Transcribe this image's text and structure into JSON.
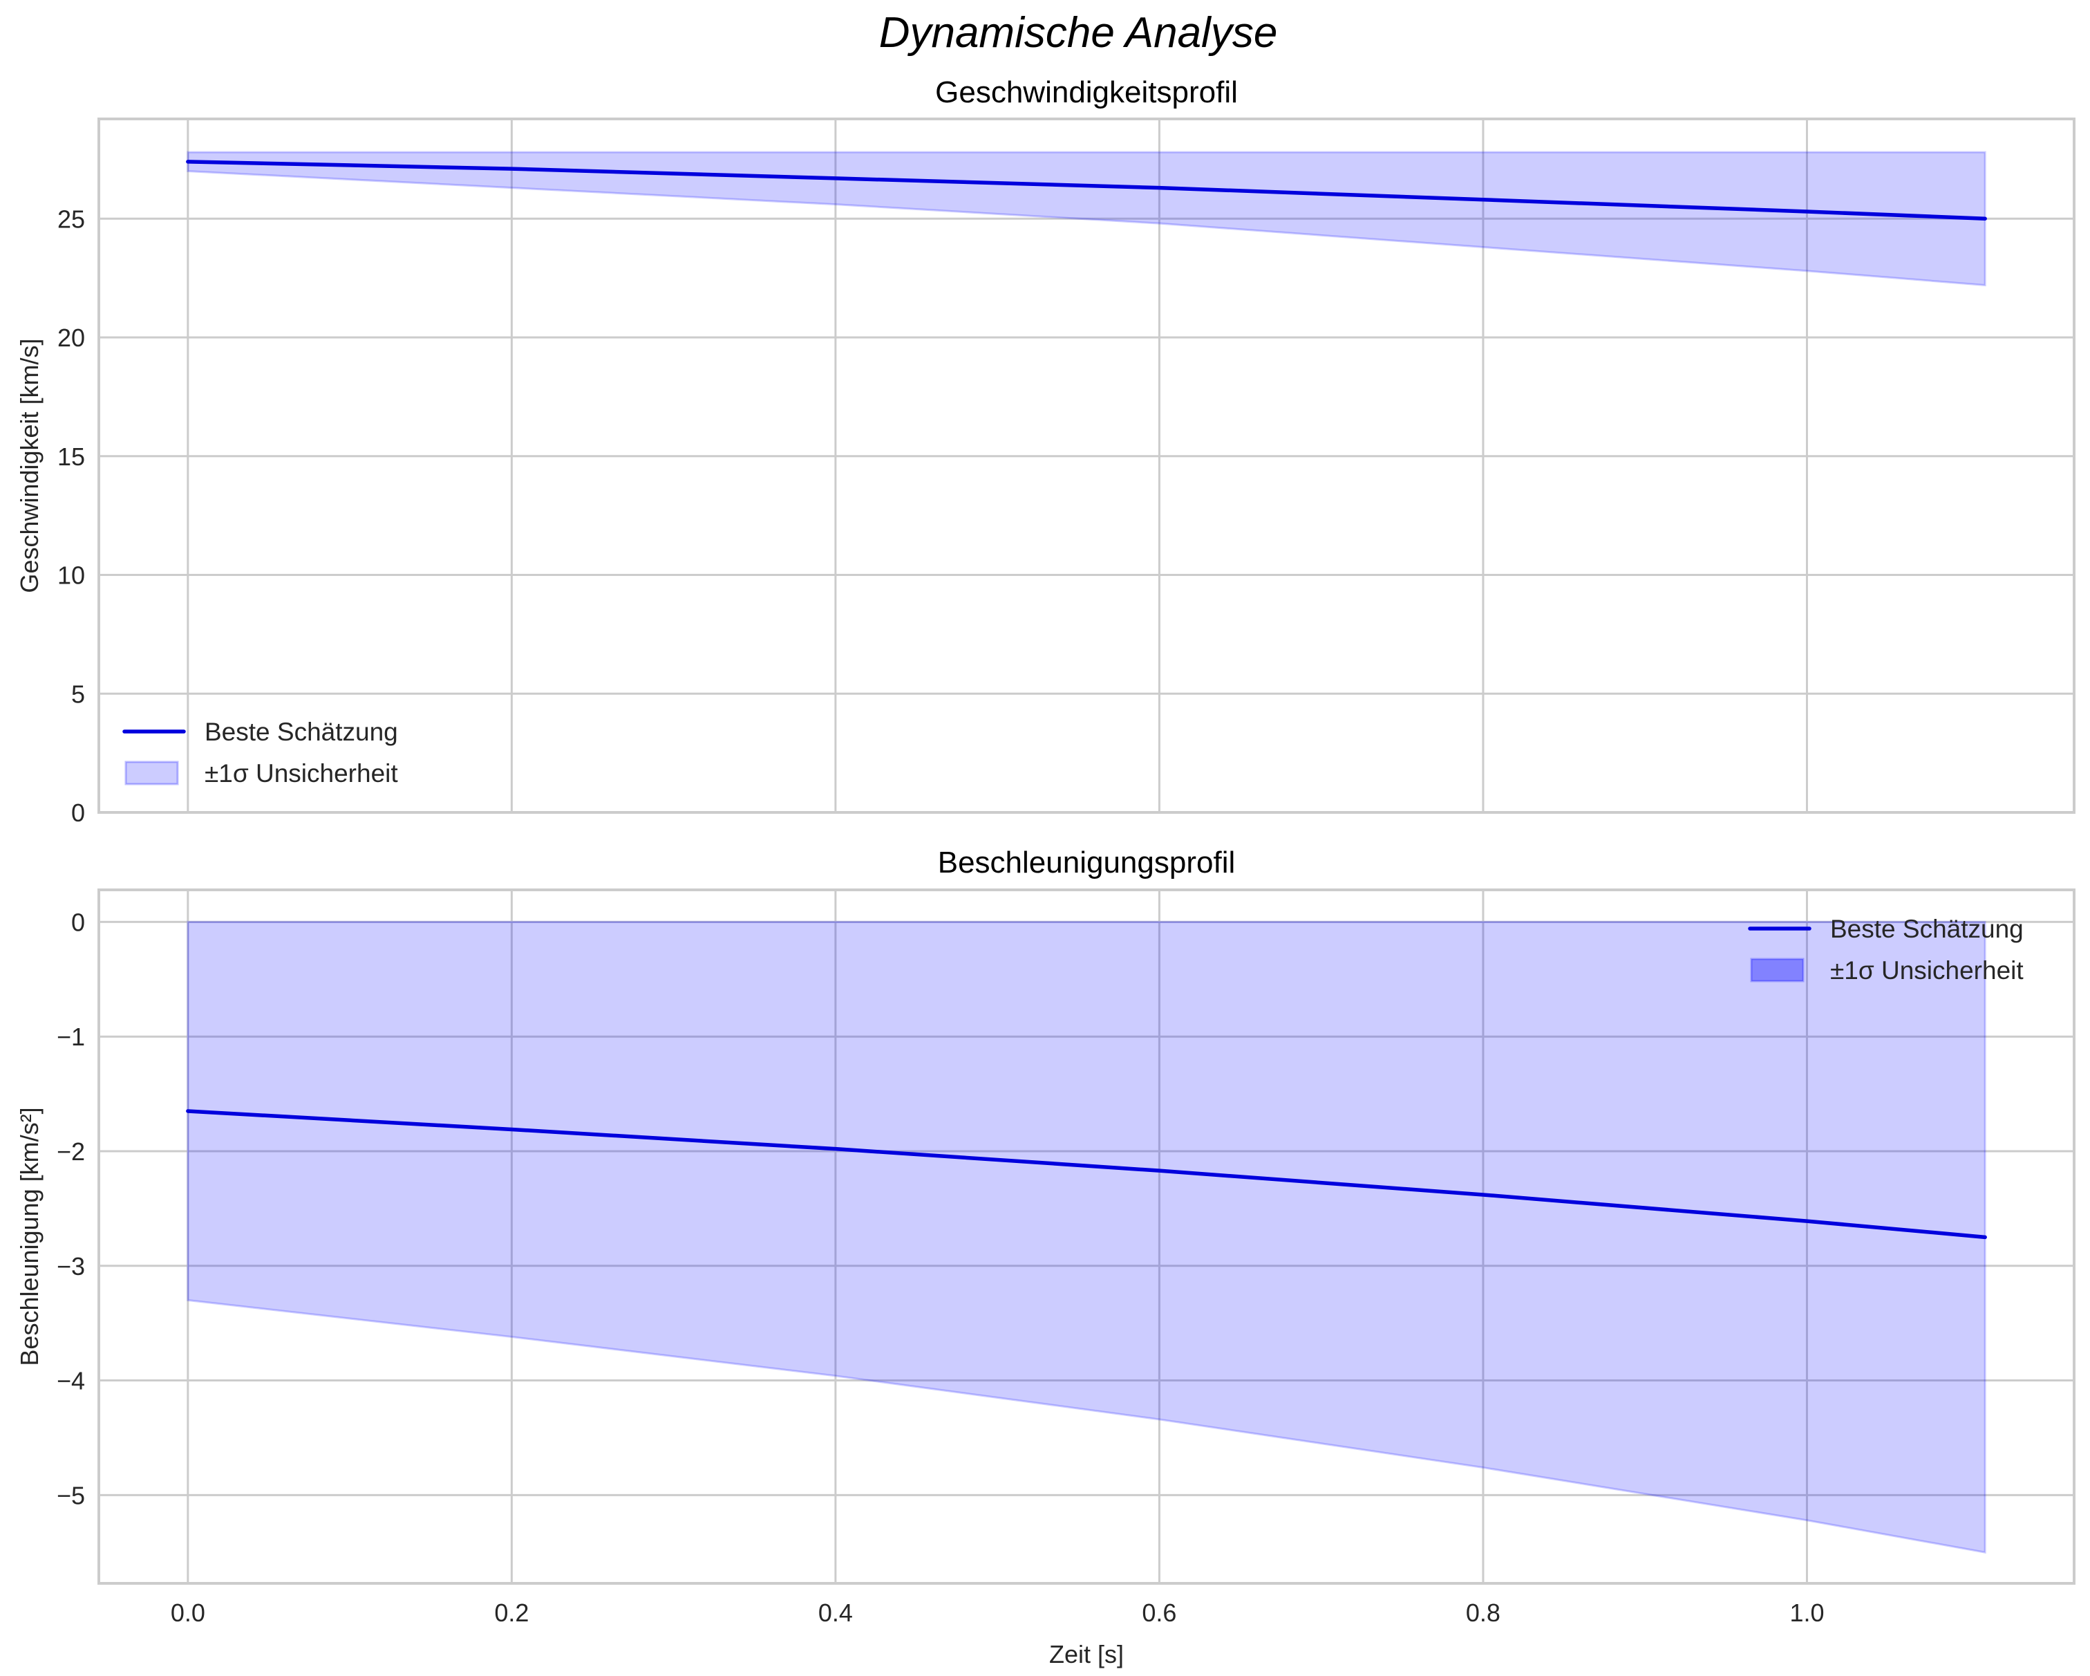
{
  "figure": {
    "title": "Dynamische Analyse"
  },
  "chart_data": [
    {
      "type": "line",
      "title": "Geschwindigkeitsprofil",
      "xlabel": "",
      "ylabel": "Geschwindigkeit [km/s]",
      "xlim": [
        -0.055,
        1.165
      ],
      "ylim": [
        0,
        29.2
      ],
      "xticks": [
        0.0,
        0.2,
        0.4,
        0.6,
        0.8,
        1.0
      ],
      "xtick_labels": [
        "",
        "",
        "",
        "",
        "",
        ""
      ],
      "yticks": [
        0,
        5,
        10,
        15,
        20,
        25
      ],
      "ytick_labels": [
        "0",
        "5",
        "10",
        "15",
        "20",
        "25"
      ],
      "grid": true,
      "legend_position": "lower left",
      "x": [
        0.0,
        0.2,
        0.4,
        0.6,
        0.8,
        1.0,
        1.11
      ],
      "series": [
        {
          "name": "Beste Schätzung",
          "kind": "line",
          "color": "#0000dd",
          "values": [
            27.4,
            27.1,
            26.7,
            26.3,
            25.8,
            25.3,
            25.0
          ]
        },
        {
          "name": "±1σ Unsicherheit",
          "kind": "band",
          "color": "#0000ff",
          "alpha": 0.2,
          "upper": [
            27.8,
            27.8,
            27.8,
            27.8,
            27.8,
            27.8,
            27.8
          ],
          "lower": [
            27.0,
            26.3,
            25.6,
            24.8,
            23.8,
            22.8,
            22.2
          ]
        }
      ]
    },
    {
      "type": "line",
      "title": "Beschleunigungsprofil",
      "xlabel": "Zeit [s]",
      "ylabel": "Beschleunigung [km/s²]",
      "xlim": [
        -0.055,
        1.165
      ],
      "ylim": [
        -5.77,
        0.28
      ],
      "xticks": [
        0.0,
        0.2,
        0.4,
        0.6,
        0.8,
        1.0
      ],
      "xtick_labels": [
        "0.0",
        "0.2",
        "0.4",
        "0.6",
        "0.8",
        "1.0"
      ],
      "yticks": [
        0,
        -1,
        -2,
        -3,
        -4,
        -5
      ],
      "ytick_labels": [
        "0",
        "−1",
        "−2",
        "−3",
        "−4",
        "−5"
      ],
      "grid": true,
      "legend_position": "upper right",
      "x": [
        0.0,
        0.2,
        0.4,
        0.6,
        0.8,
        1.0,
        1.11
      ],
      "series": [
        {
          "name": "Beste Schätzung",
          "kind": "line",
          "color": "#0000dd",
          "values": [
            -1.65,
            -1.81,
            -1.98,
            -2.17,
            -2.38,
            -2.61,
            -2.75
          ]
        },
        {
          "name": "±1σ Unsicherheit",
          "kind": "band",
          "color": "#0000ff",
          "alpha": 0.2,
          "upper": [
            0,
            0,
            0,
            0,
            0,
            0,
            0
          ],
          "lower": [
            -3.3,
            -3.62,
            -3.96,
            -4.34,
            -4.76,
            -5.22,
            -5.5
          ]
        }
      ]
    }
  ]
}
